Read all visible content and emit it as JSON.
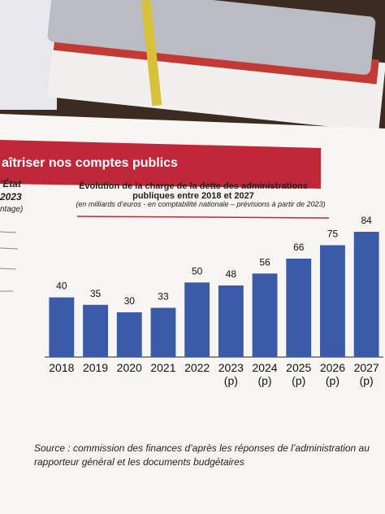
{
  "document": {
    "banner": "aîtriser nos comptes publics",
    "sidebar": [
      "’État",
      "2023",
      "ntage)"
    ],
    "source_label": "Source :",
    "source_text": "commission des finances d’après les réponses de l’administration au rapporteur général et les documents budgétaires"
  },
  "chart_data": {
    "type": "bar",
    "title": "Évolution de la charge de la dette des administrations publiques entre 2018 et 2027",
    "subtitle": "(en milliards d’euros - en comptabilité nationale – prévisions à partir de 2023)",
    "categories": [
      "2018",
      "2019",
      "2020",
      "2021",
      "2022",
      "2023 (p)",
      "2024 (p)",
      "2025 (p)",
      "2026 (p)",
      "2027 (p)"
    ],
    "values": [
      40,
      35,
      30,
      33,
      50,
      48,
      56,
      66,
      75,
      84
    ],
    "color": "#3b5ba9"
  }
}
